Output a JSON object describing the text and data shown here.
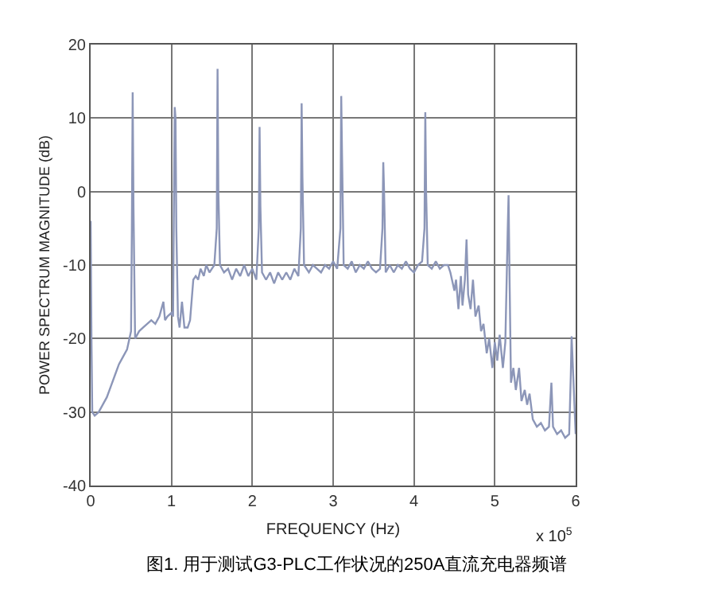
{
  "chart_data": {
    "type": "line",
    "xlabel": "FREQUENCY (Hz)",
    "ylabel": "POWER SPECTRUM MAGNITUDE (dB)",
    "annotations": [
      "x 10$^{5}$",
      "图1. 用于测试G3-PLC工作状况的250A直流充电器频谱"
    ],
    "xlim": [
      0,
      6
    ],
    "xticks": [
      0,
      1,
      2,
      3,
      4,
      5,
      6
    ],
    "ylim": [
      -40,
      20
    ],
    "yticks": [
      -40,
      -30,
      -20,
      -10,
      0,
      10,
      20
    ],
    "grid": true,
    "legend": false,
    "marker": "none",
    "line_style": "solid",
    "series": [
      {
        "color": "#8c96b8",
        "x": [
          0,
          0.01,
          0.02,
          0.05,
          0.1,
          0.15,
          0.2,
          0.25,
          0.3,
          0.35,
          0.4,
          0.45,
          0.48,
          0.5,
          0.51,
          0.52,
          0.53,
          0.55,
          0.6,
          0.65,
          0.7,
          0.75,
          0.8,
          0.85,
          0.9,
          0.92,
          0.95,
          1.0,
          1.02,
          1.03,
          1.04,
          1.05,
          1.06,
          1.08,
          1.1,
          1.13,
          1.16,
          1.2,
          1.23,
          1.27,
          1.3,
          1.33,
          1.36,
          1.4,
          1.43,
          1.47,
          1.5,
          1.53,
          1.56,
          1.57,
          1.58,
          1.6,
          1.65,
          1.7,
          1.75,
          1.8,
          1.85,
          1.9,
          1.95,
          2.0,
          2.05,
          2.08,
          2.09,
          2.1,
          2.12,
          2.17,
          2.22,
          2.27,
          2.32,
          2.37,
          2.42,
          2.47,
          2.52,
          2.57,
          2.6,
          2.61,
          2.62,
          2.64,
          2.7,
          2.75,
          2.8,
          2.85,
          2.9,
          2.95,
          3.0,
          3.05,
          3.09,
          3.1,
          3.11,
          3.13,
          3.18,
          3.23,
          3.28,
          3.33,
          3.38,
          3.43,
          3.48,
          3.53,
          3.58,
          3.61,
          3.62,
          3.63,
          3.65,
          3.7,
          3.75,
          3.8,
          3.85,
          3.9,
          3.95,
          4.0,
          4.05,
          4.1,
          4.13,
          4.14,
          4.15,
          4.17,
          4.22,
          4.27,
          4.32,
          4.37,
          4.42,
          4.45,
          4.5,
          4.52,
          4.55,
          4.58,
          4.6,
          4.63,
          4.65,
          4.67,
          4.7,
          4.73,
          4.76,
          4.8,
          4.83,
          4.86,
          4.9,
          4.93,
          4.97,
          5.0,
          5.03,
          5.06,
          5.1,
          5.13,
          5.16,
          5.17,
          5.18,
          5.2,
          5.23,
          5.26,
          5.3,
          5.33,
          5.37,
          5.4,
          5.43,
          5.47,
          5.52,
          5.57,
          5.62,
          5.67,
          5.7,
          5.72,
          5.77,
          5.82,
          5.87,
          5.92,
          5.94,
          5.95,
          5.97,
          6.0
        ],
        "values": [
          -4,
          -20,
          -30,
          -30.5,
          -30,
          -29,
          -28,
          -26.5,
          -25,
          -23.5,
          -22.5,
          -21.5,
          -20,
          -19,
          -5,
          13.5,
          -2,
          -20,
          -19,
          -18.5,
          -18,
          -17.5,
          -18,
          -17,
          -15,
          -17.5,
          -17,
          -16.5,
          -17,
          -2,
          11.5,
          10,
          -5,
          -17,
          -18.5,
          -15,
          -18.5,
          -18.5,
          -17.5,
          -12,
          -11.5,
          -12,
          -10.5,
          -11.5,
          -10,
          -11,
          -10.5,
          -10,
          -5,
          16.7,
          0,
          -10,
          -11,
          -10.5,
          -12,
          -10.5,
          -11.5,
          -10,
          -11.5,
          -10.5,
          -12,
          -5,
          8.8,
          -2,
          -11,
          -12,
          -11,
          -12.5,
          -11,
          -12,
          -11,
          -12,
          -10.5,
          -11.5,
          -5,
          12,
          2,
          -10,
          -11,
          -10,
          -10.5,
          -11,
          -10,
          -10.5,
          -9.5,
          -10.5,
          -5,
          13,
          5,
          -10,
          -10.5,
          -9.5,
          -11,
          -10,
          -10.5,
          -9.5,
          -10.5,
          -11,
          -10.5,
          -5,
          4,
          0,
          -11,
          -10,
          -11,
          -10,
          -10.5,
          -9.5,
          -10.5,
          -11,
          -10,
          -9.5,
          -5,
          10.8,
          0,
          -10,
          -10.5,
          -9.5,
          -10.5,
          -10,
          -10,
          -11,
          -13.5,
          -12,
          -16,
          -11.5,
          -15.5,
          -12,
          -6.5,
          -14,
          -16,
          -12,
          -17,
          -15.5,
          -19,
          -18,
          -22,
          -20,
          -24,
          -20.5,
          -23,
          -19.5,
          -24,
          -20.5,
          -5,
          -0.5,
          -10,
          -26,
          -24,
          -27,
          -24,
          -28.5,
          -27,
          -29,
          -27.5,
          -31,
          -32,
          -31.5,
          -32.5,
          -32,
          -26,
          -32,
          -33,
          -32.5,
          -33.5,
          -33,
          -25,
          -19.7,
          -25,
          -33
        ]
      }
    ]
  }
}
